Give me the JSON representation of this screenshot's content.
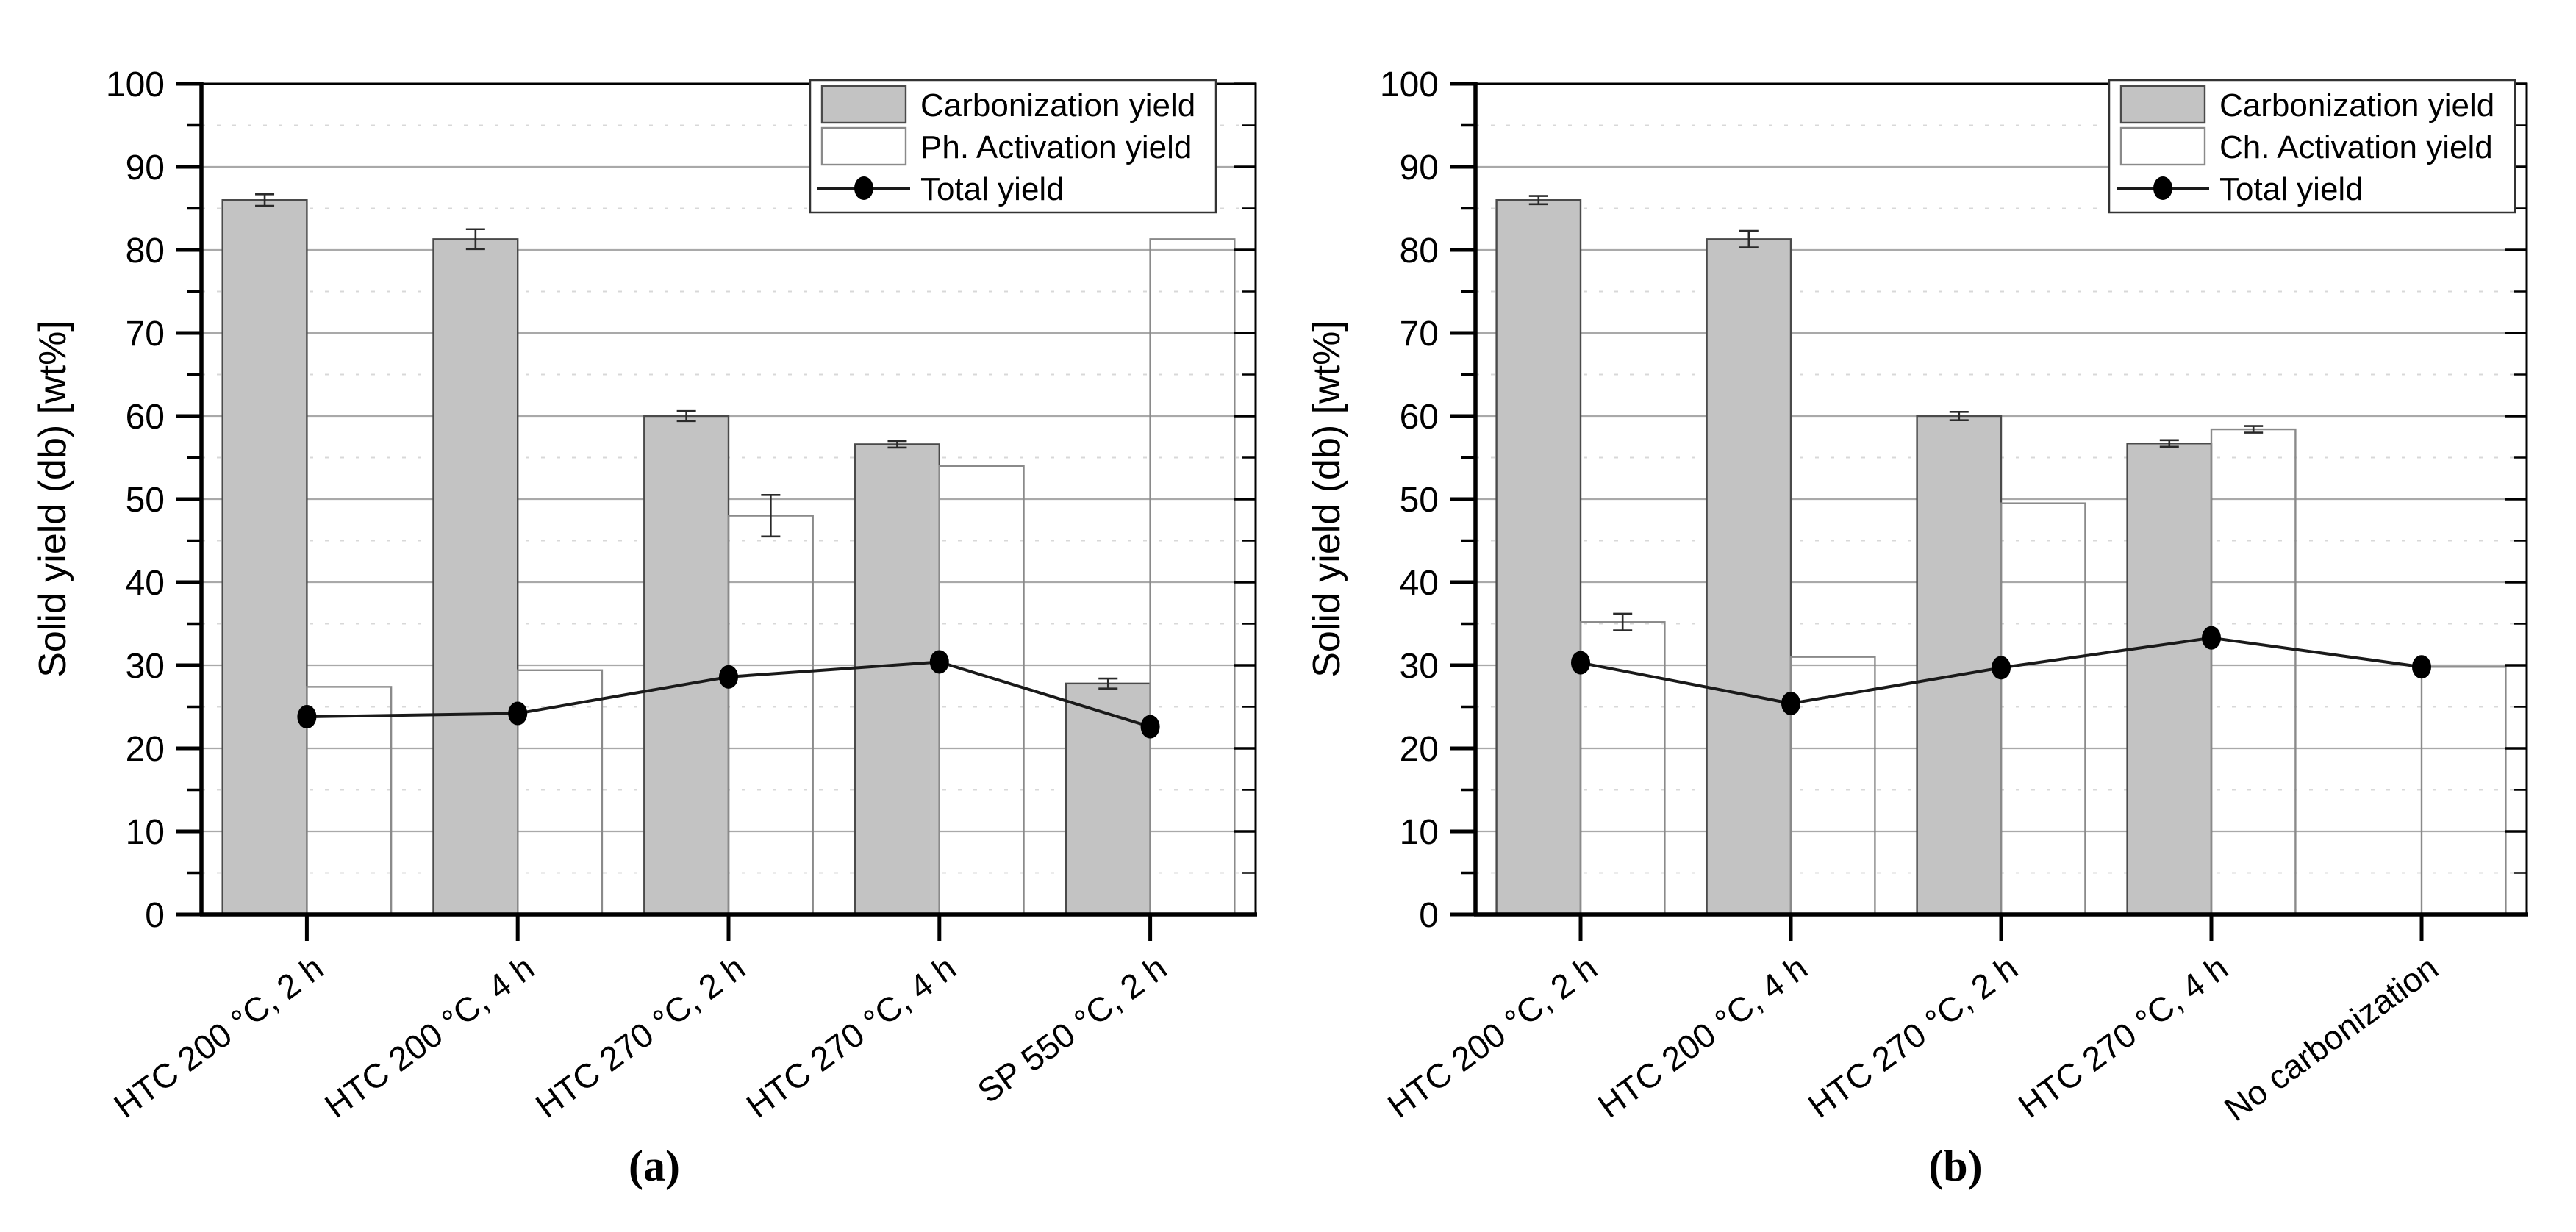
{
  "figure": {
    "captions": {
      "a": "(a)",
      "b": "(b)"
    }
  },
  "colors": {
    "bar_carbonization_fill": "#c3c3c3",
    "bar_carbonization_border": "#4a4a4a",
    "bar_activation_border": "#8a8a8a",
    "total_line": "#1a1a1a",
    "marker": "#000000",
    "error_bar": "#2a2a2a",
    "grid_major": "#a9a9a9",
    "grid_minor": "#d8d8d8",
    "axis": "#000000",
    "legend_border": "#333333",
    "text": "#000000"
  },
  "chart_data": [
    {
      "id": "a",
      "type": "bar",
      "title": "",
      "xlabel": "",
      "ylabel": "Solid yield (db) [wt%]",
      "ylim": [
        0,
        100
      ],
      "ytick_step": 10,
      "yminor_step": 5,
      "grid": "major solid, minor dashed",
      "legend_position": "top-right",
      "categories": [
        "HTC 200 °C, 2 h",
        "HTC 200 °C, 4 h",
        "HTC 270 °C, 2 h",
        "HTC 270 °C, 4 h",
        "SP 550 °C, 2 h"
      ],
      "series": [
        {
          "name": "Carbonization yield",
          "type": "bar",
          "fill": "gray",
          "values": [
            86.0,
            81.3,
            60.0,
            56.6,
            27.8
          ],
          "errors": [
            0.7,
            1.2,
            0.6,
            0.4,
            0.6
          ]
        },
        {
          "name": "Ph. Activation yield",
          "type": "bar",
          "fill": "white",
          "values": [
            27.4,
            29.4,
            48.0,
            54.0,
            81.3
          ],
          "errors": [
            0,
            0,
            2.5,
            0,
            0
          ]
        },
        {
          "name": "Total yield",
          "type": "line",
          "values": [
            23.8,
            24.2,
            28.6,
            30.4,
            22.6
          ],
          "errors": [
            0,
            0,
            0,
            0,
            0
          ]
        }
      ]
    },
    {
      "id": "b",
      "type": "bar",
      "title": "",
      "xlabel": "",
      "ylabel": "Solid yield (db) [wt%]",
      "ylim": [
        0,
        100
      ],
      "ytick_step": 10,
      "yminor_step": 5,
      "grid": "major solid, minor dashed",
      "legend_position": "top-right",
      "categories": [
        "HTC 200 °C, 2 h",
        "HTC 200 °C, 4 h",
        "HTC 270 °C, 2 h",
        "HTC 270 °C, 4 h",
        "No carbonization"
      ],
      "series": [
        {
          "name": "Carbonization yield",
          "type": "bar",
          "fill": "gray",
          "values": [
            86.0,
            81.3,
            60.0,
            56.7,
            null
          ],
          "errors": [
            0.5,
            1.0,
            0.5,
            0.4,
            null
          ]
        },
        {
          "name": "Ch. Activation yield",
          "type": "bar",
          "fill": "white",
          "values": [
            35.2,
            31.0,
            49.5,
            58.4,
            29.8
          ],
          "errors": [
            1.0,
            0,
            0,
            0.4,
            0
          ]
        },
        {
          "name": "Total yield",
          "type": "line",
          "values": [
            30.3,
            25.4,
            29.7,
            33.3,
            29.8
          ],
          "errors": [
            0,
            0,
            0,
            0,
            0
          ]
        }
      ]
    }
  ]
}
